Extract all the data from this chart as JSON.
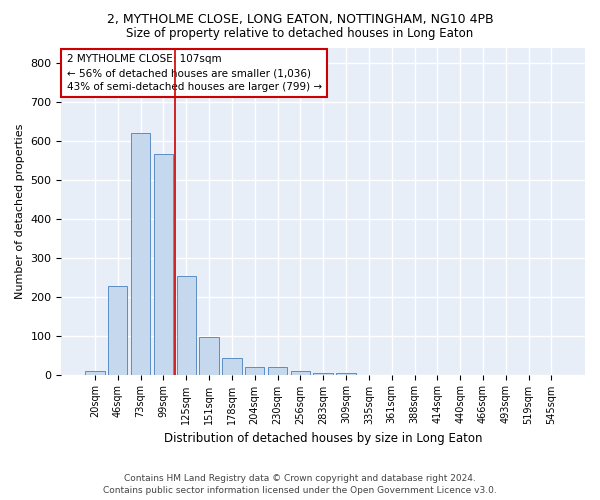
{
  "title": "2, MYTHOLME CLOSE, LONG EATON, NOTTINGHAM, NG10 4PB",
  "subtitle": "Size of property relative to detached houses in Long Eaton",
  "xlabel": "Distribution of detached houses by size in Long Eaton",
  "ylabel": "Number of detached properties",
  "bar_color": "#c5d8ed",
  "bar_edge_color": "#5b8ec4",
  "background_color": "#e8eef8",
  "grid_color": "#ffffff",
  "categories": [
    "20sqm",
    "46sqm",
    "73sqm",
    "99sqm",
    "125sqm",
    "151sqm",
    "178sqm",
    "204sqm",
    "230sqm",
    "256sqm",
    "283sqm",
    "309sqm",
    "335sqm",
    "361sqm",
    "388sqm",
    "414sqm",
    "440sqm",
    "466sqm",
    "493sqm",
    "519sqm",
    "545sqm"
  ],
  "values": [
    10,
    228,
    620,
    567,
    254,
    96,
    43,
    20,
    20,
    10,
    5,
    5,
    0,
    0,
    0,
    0,
    0,
    0,
    0,
    0,
    0
  ],
  "ylim": [
    0,
    840
  ],
  "yticks": [
    0,
    100,
    200,
    300,
    400,
    500,
    600,
    700,
    800
  ],
  "property_line_x": 3.5,
  "annotation_text": "2 MYTHOLME CLOSE: 107sqm\n← 56% of detached houses are smaller (1,036)\n43% of semi-detached houses are larger (799) →",
  "annotation_box_color": "#ffffff",
  "annotation_box_edge": "#cc0000",
  "property_line_color": "#cc0000",
  "footer_line1": "Contains HM Land Registry data © Crown copyright and database right 2024.",
  "footer_line2": "Contains public sector information licensed under the Open Government Licence v3.0."
}
